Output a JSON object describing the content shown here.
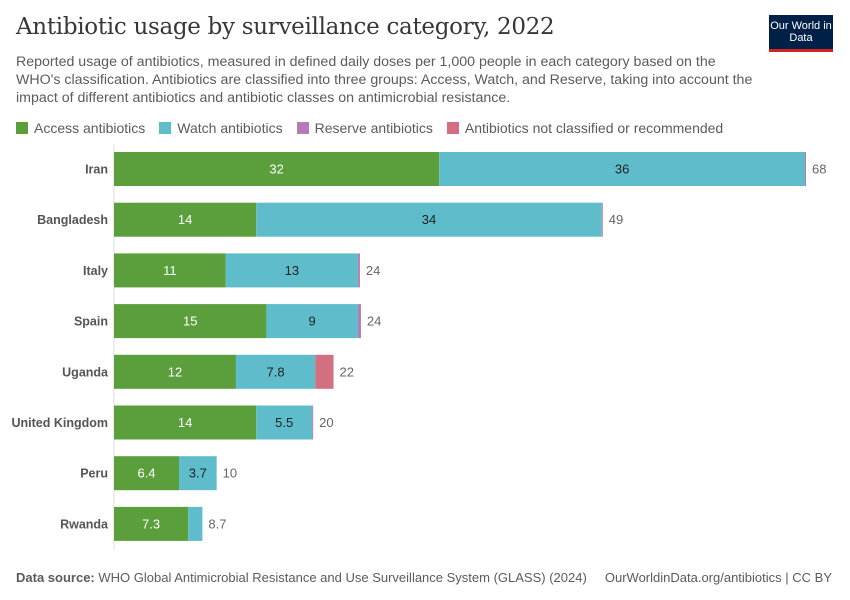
{
  "header": {
    "title": "Antibiotic usage by surveillance category, 2022",
    "subtitle": "Reported usage of antibiotics, measured in defined daily doses per 1,000 people in each category based on the WHO's classification. Antibiotics are classified into three groups: Access, Watch, and Reserve, taking into account the impact of different antibiotics and antibiotic classes on antimicrobial resistance.",
    "logo": "Our World in Data"
  },
  "footer": {
    "source_label": "Data source:",
    "source": "WHO Global Antimicrobial Resistance and Use Surveillance System (GLASS) (2024)",
    "url": "OurWorldinData.org/antibiotics | CC BY"
  },
  "chart_data": {
    "type": "bar",
    "orientation": "horizontal",
    "stacked": true,
    "legend_position": "top",
    "grid": false,
    "categories": [
      "Iran",
      "Bangladesh",
      "Italy",
      "Spain",
      "Uganda",
      "United Kingdom",
      "Peru",
      "Rwanda"
    ],
    "series": [
      {
        "name": "Access antibiotics",
        "color": "#5b9e3c",
        "values": [
          32,
          14,
          11,
          15,
          12,
          14,
          6.4,
          7.3
        ],
        "labels": [
          "32",
          "14",
          "11",
          "15",
          "12",
          "14",
          "6.4",
          "7.3"
        ]
      },
      {
        "name": "Watch antibiotics",
        "color": "#5fbcca",
        "values": [
          36,
          34,
          13,
          9,
          7.8,
          5.5,
          3.7,
          1.4
        ],
        "labels": [
          "36",
          "34",
          "13",
          "9",
          "7.8",
          "5.5",
          "3.7",
          ""
        ]
      },
      {
        "name": "Reserve antibiotics",
        "color": "#b17cb8",
        "values": [
          0.1,
          0.1,
          0.2,
          0.3,
          0,
          0.1,
          0,
          0
        ],
        "labels": [
          "",
          "",
          "",
          "",
          "",
          "",
          "",
          ""
        ]
      },
      {
        "name": "Antibiotics not classified or recommended",
        "color": "#d2707f",
        "values": [
          0,
          0,
          0,
          0,
          1.8,
          0,
          0,
          0
        ],
        "labels": [
          "",
          "",
          "",
          "",
          "",
          "",
          "",
          ""
        ]
      }
    ],
    "totals": [
      "68",
      "49",
      "24",
      "24",
      "22",
      "20",
      "10",
      "8.7"
    ],
    "xlim": [
      0,
      68
    ]
  }
}
